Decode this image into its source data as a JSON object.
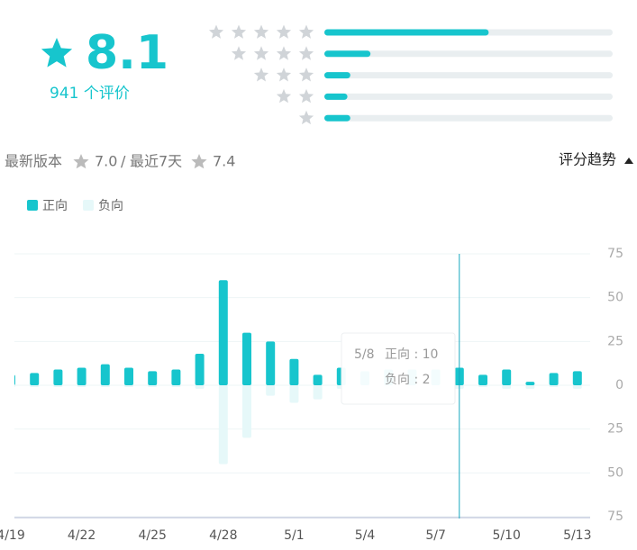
{
  "rating": {
    "score": "8.1",
    "count_label": "941 个评价",
    "distribution": [
      {
        "stars": 5,
        "value": 57
      },
      {
        "stars": 4,
        "value": 16
      },
      {
        "stars": 3,
        "value": 9
      },
      {
        "stars": 2,
        "value": 8
      },
      {
        "stars": 1,
        "value": 9
      }
    ]
  },
  "version": {
    "latest_label": "最新版本",
    "latest_score": "7.0",
    "separator": "/",
    "recent_label": "最近7天",
    "recent_score": "7.4",
    "trend_label": "评分趋势"
  },
  "chart_data": {
    "type": "bar",
    "categories": [
      "4/19",
      null,
      null,
      "4/22",
      null,
      null,
      "4/25",
      null,
      null,
      "4/28",
      null,
      null,
      "5/1",
      null,
      null,
      "5/4",
      null,
      null,
      "5/7",
      null,
      null,
      "5/10",
      null,
      null,
      "5/13"
    ],
    "series": [
      {
        "name": "正向",
        "color": "#17c5cd",
        "values": [
          6,
          7,
          9,
          10,
          12,
          10,
          8,
          9,
          18,
          60,
          30,
          25,
          15,
          6,
          10,
          8,
          9,
          9,
          9,
          10,
          6,
          9,
          2,
          7,
          8
        ]
      },
      {
        "name": "负向",
        "color": "#e6f8f9",
        "values": [
          -1,
          -1,
          -1,
          -1,
          -1,
          -1,
          -1,
          -1,
          -2,
          -45,
          -30,
          -6,
          -10,
          -8,
          -2,
          -2,
          -2,
          -2,
          -2,
          -2,
          -1,
          -2,
          -2,
          -1,
          -2
        ]
      }
    ],
    "ylim": [
      -75,
      75
    ],
    "yticks": [
      75,
      50,
      25,
      0,
      {
        "value": -25,
        "label": "25"
      },
      {
        "value": -50,
        "label": "50"
      },
      {
        "value": -75,
        "label": "75"
      }
    ],
    "grid": true,
    "legend": "top-left",
    "tooltip": {
      "title": "5/8",
      "rows": [
        "正向 : 10",
        "负向 : 2"
      ]
    }
  }
}
